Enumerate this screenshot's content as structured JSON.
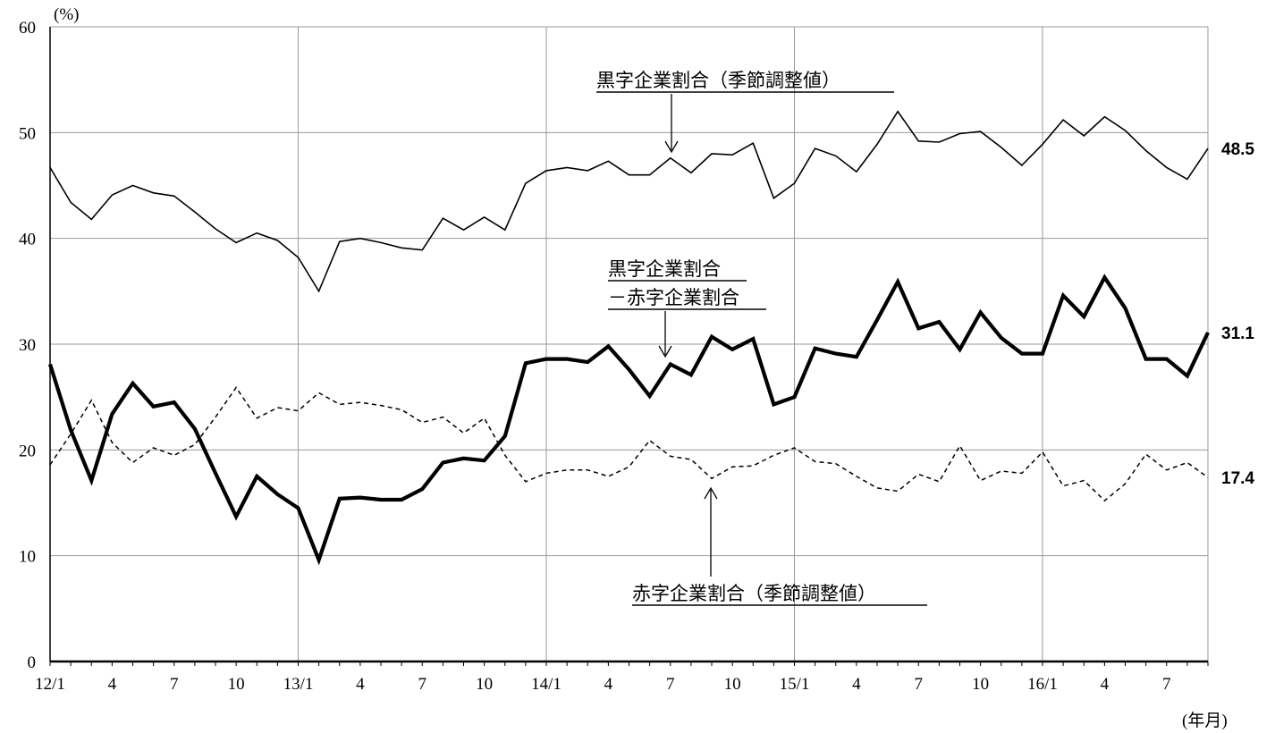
{
  "chart_data": {
    "type": "line",
    "y_unit": "(%)",
    "x_unit": "(年月)",
    "ylim": [
      0,
      60
    ],
    "y_ticks": [
      "0",
      "10",
      "20",
      "30",
      "40",
      "50",
      "60"
    ],
    "grid": true,
    "x_tick_labels": [
      "12/1",
      "4",
      "7",
      "10",
      "13/1",
      "4",
      "7",
      "10",
      "14/1",
      "4",
      "7",
      "10",
      "15/1",
      "4",
      "7",
      "10",
      "16/1",
      "4",
      "7"
    ],
    "x_months": [
      "2012-01",
      "2012-02",
      "2012-03",
      "2012-04",
      "2012-05",
      "2012-06",
      "2012-07",
      "2012-08",
      "2012-09",
      "2012-10",
      "2012-11",
      "2012-12",
      "2013-01",
      "2013-02",
      "2013-03",
      "2013-04",
      "2013-05",
      "2013-06",
      "2013-07",
      "2013-08",
      "2013-09",
      "2013-10",
      "2013-11",
      "2013-12",
      "2014-01",
      "2014-02",
      "2014-03",
      "2014-04",
      "2014-05",
      "2014-06",
      "2014-07",
      "2014-08",
      "2014-09",
      "2014-10",
      "2014-11",
      "2014-12",
      "2015-01",
      "2015-02",
      "2015-03",
      "2015-04",
      "2015-05",
      "2015-06",
      "2015-07",
      "2015-08",
      "2015-09",
      "2015-10",
      "2015-11",
      "2015-12",
      "2016-01",
      "2016-02",
      "2016-03",
      "2016-04",
      "2016-05",
      "2016-06",
      "2016-07",
      "2016-08",
      "2016-09"
    ],
    "series": [
      {
        "name": "黒字企業割合（季節調整値）",
        "style": "thin-solid",
        "end_label": "48.5",
        "values": [
          46.7,
          43.4,
          41.8,
          44.1,
          45.0,
          44.3,
          44.0,
          42.5,
          40.9,
          39.6,
          40.5,
          39.8,
          38.2,
          35.0,
          39.7,
          40.0,
          39.6,
          39.1,
          38.9,
          41.9,
          40.8,
          42.0,
          40.8,
          45.2,
          46.4,
          46.7,
          46.4,
          47.3,
          46.0,
          46.0,
          47.6,
          46.2,
          48.0,
          47.9,
          49.0,
          43.8,
          45.2,
          48.5,
          47.8,
          46.3,
          48.9,
          52.0,
          49.2,
          49.1,
          49.9,
          50.1,
          48.6,
          46.9,
          48.9,
          51.2,
          49.7,
          51.5,
          50.2,
          48.3,
          46.7,
          45.6,
          48.5
        ]
      },
      {
        "name": "黒字企業割合\n－赤字企業割合",
        "style": "thick-solid",
        "end_label": "31.1",
        "values": [
          28.1,
          21.9,
          17.1,
          23.4,
          26.3,
          24.1,
          24.5,
          22.0,
          17.8,
          13.7,
          17.5,
          15.8,
          14.5,
          9.6,
          15.4,
          15.5,
          15.3,
          15.3,
          16.3,
          18.8,
          19.2,
          19.0,
          21.3,
          28.2,
          28.6,
          28.6,
          28.3,
          29.8,
          27.6,
          25.1,
          28.1,
          27.1,
          30.7,
          29.5,
          30.5,
          24.3,
          25.0,
          29.6,
          29.1,
          28.8,
          32.3,
          35.9,
          31.5,
          32.1,
          29.5,
          33.0,
          30.6,
          29.1,
          29.1,
          34.6,
          32.6,
          36.3,
          33.4,
          28.6,
          28.6,
          27.0,
          31.1
        ]
      },
      {
        "name": "赤字企業割合（季節調整値）",
        "style": "dashed",
        "end_label": "17.4",
        "values": [
          18.6,
          21.5,
          24.7,
          20.7,
          18.8,
          20.2,
          19.5,
          20.5,
          23.1,
          25.9,
          23.0,
          24.0,
          23.7,
          25.4,
          24.3,
          24.5,
          24.2,
          23.8,
          22.6,
          23.1,
          21.6,
          23.0,
          19.5,
          17.0,
          17.8,
          18.1,
          18.1,
          17.5,
          18.4,
          20.9,
          19.4,
          19.1,
          17.3,
          18.4,
          18.5,
          19.5,
          20.2,
          18.9,
          18.7,
          17.5,
          16.4,
          16.1,
          17.7,
          17.0,
          20.4,
          17.1,
          18.0,
          17.8,
          19.8,
          16.6,
          17.1,
          15.2,
          16.8,
          19.6,
          18.1,
          18.8,
          17.4
        ]
      }
    ]
  }
}
